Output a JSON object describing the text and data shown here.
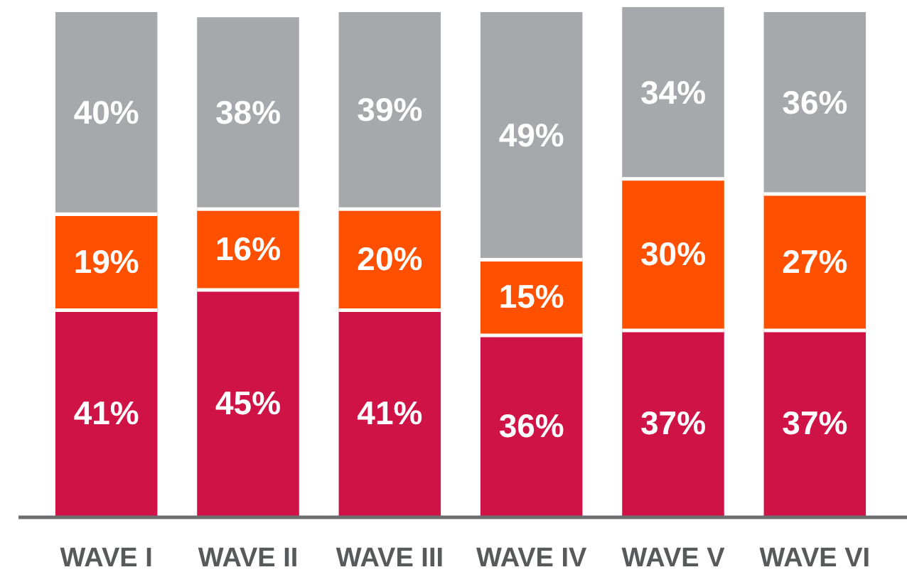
{
  "chart_data": {
    "type": "bar",
    "stacked": true,
    "categories": [
      "WAVE I",
      "WAVE II",
      "WAVE III",
      "WAVE IV",
      "WAVE V",
      "WAVE VI"
    ],
    "series": [
      {
        "color": "#d01346",
        "values": [
          41,
          45,
          41,
          36,
          37,
          37
        ],
        "value_labels": [
          "41%",
          "45%",
          "41%",
          "36%",
          "37%",
          "37%"
        ]
      },
      {
        "color": "#ff5000",
        "values": [
          19,
          16,
          20,
          15,
          30,
          27
        ],
        "value_labels": [
          "19%",
          "16%",
          "20%",
          "15%",
          "30%",
          "27%"
        ]
      },
      {
        "color": "#a7a8ac",
        "values": [
          40,
          38,
          39,
          49,
          34,
          36
        ],
        "value_labels": [
          "40%",
          "38%",
          "39%",
          "49%",
          "34%",
          "36%"
        ]
      }
    ],
    "ylim": [
      0,
      101
    ],
    "tick_labels": "x",
    "grid": false,
    "legend": false
  }
}
